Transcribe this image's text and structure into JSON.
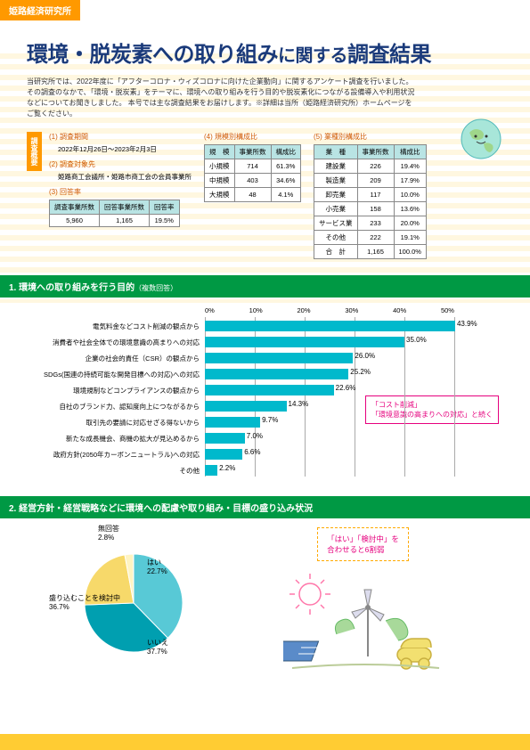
{
  "header_tag": "姫路経済研究所",
  "title_pre": "環境・脱炭素への取り組み",
  "title_mid": "に関する",
  "title_post": "調査結果",
  "intro": "当研究所では、2022年度に「アフターコロナ・ウィズコロナに向けた企業動向」に関するアンケート調査を行いました。その調査のなかで、「環境・脱炭素」をテーマに、環境への取り組みを行う目的や脱炭素化につながる設備導入や利用状況などについてお聞きしました。\n本号では主な調査結果をお届けします。※詳細は当所（姫路経済研究所）ホームページをご覧ください。",
  "survey_label": "調査概要",
  "s1_title": "(1) 調査期間",
  "s1_text": "2022年12月26日～2023年2月3日",
  "s2_title": "(2) 調査対象先",
  "s2_text": "姫路商工会議所・姫路市商工会の会員事業所",
  "s3_title": "(3) 回答率",
  "t3_headers": [
    "調査事業所数",
    "回答事業所数",
    "回答率"
  ],
  "t3_row": [
    "5,960",
    "1,165",
    "19.5%"
  ],
  "s4_title": "(4) 規模別構成比",
  "t4_headers": [
    "規　模",
    "事業所数",
    "構成比"
  ],
  "t4_rows": [
    [
      "小規模",
      "714",
      "61.3%"
    ],
    [
      "中規模",
      "403",
      "34.6%"
    ],
    [
      "大規模",
      "48",
      "4.1%"
    ]
  ],
  "s5_title": "(5) 業種別構成比",
  "t5_headers": [
    "業　種",
    "事業所数",
    "構成比"
  ],
  "t5_rows": [
    [
      "建設業",
      "226",
      "19.4%"
    ],
    [
      "製造業",
      "209",
      "17.9%"
    ],
    [
      "卸売業",
      "117",
      "10.0%"
    ],
    [
      "小売業",
      "158",
      "13.6%"
    ],
    [
      "サービス業",
      "233",
      "20.0%"
    ],
    [
      "その他",
      "222",
      "19.1%"
    ],
    [
      "合　計",
      "1,165",
      "100.0%"
    ]
  ],
  "sec1_title": "1. 環境への取り組みを行う目的",
  "sec1_sub": "（複数回答）",
  "axis": [
    "0%",
    "10%",
    "20%",
    "30%",
    "40%",
    "50%"
  ],
  "bars": [
    {
      "label": "電気料金などコスト削減の観点から",
      "val": 43.9
    },
    {
      "label": "消費者や社会全体での環境意識の高まりへの対応",
      "val": 35.0
    },
    {
      "label": "企業の社会的責任（CSR）の観点から",
      "val": 26.0
    },
    {
      "label": "SDGs(国連の持続可能な開発目標への対応)への対応",
      "val": 25.2
    },
    {
      "label": "環境規制などコンプライアンスの観点から",
      "val": 22.6
    },
    {
      "label": "自社のブランド力、認知度向上につながるから",
      "val": 14.3
    },
    {
      "label": "取引先の要請に対応せざる得ないから",
      "val": 9.7
    },
    {
      "label": "新たな成長機会、商機の拡大が見込めるから",
      "val": 7.0
    },
    {
      "label": "政府方針(2050年カーボンニュートラル)への対応",
      "val": 6.6
    },
    {
      "label": "その他",
      "val": 2.2
    }
  ],
  "bar_color": "#00b9cc",
  "callout1_l1": "「コスト削減」",
  "callout1_l2": "「環境意識の高まりへの対応」と続く",
  "sec2_title": "2. 経営方針・経営戦略などに環境への配慮や取り組み・目標の盛り込み状況",
  "pie": [
    {
      "label": "いいえ",
      "val": 37.7,
      "color": "#58c9d6"
    },
    {
      "label": "盛り込むことを検討中",
      "val": 36.7,
      "color": "#009fb0"
    },
    {
      "label": "はい",
      "val": 22.7,
      "color": "#f7d96a"
    },
    {
      "label": "無回答",
      "val": 2.8,
      "color": "#fff4c2"
    }
  ],
  "callout2_l1": "「はい」「検討中」を",
  "callout2_l2": "合わせると6割弱"
}
